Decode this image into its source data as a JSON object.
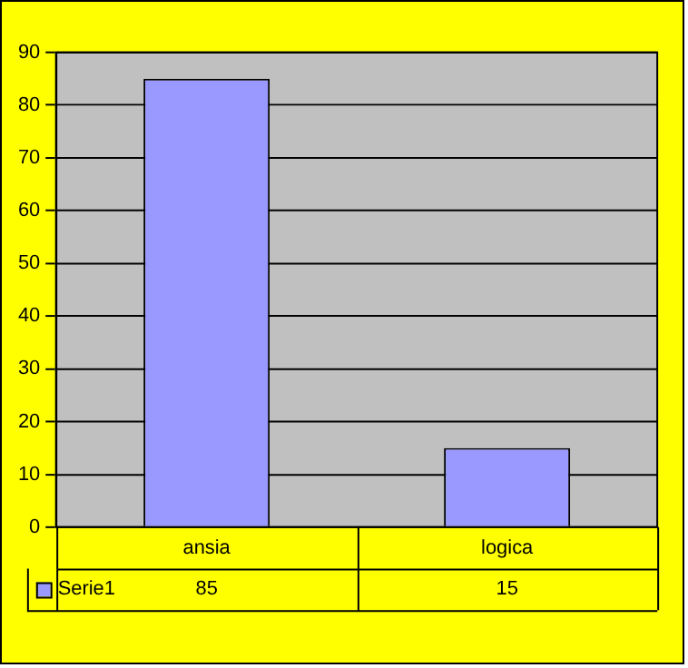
{
  "chart_data": {
    "type": "bar",
    "categories": [
      "ansia",
      "logica"
    ],
    "series": [
      {
        "name": "Serie1",
        "color": "#9999ff",
        "values": [
          85,
          15
        ]
      }
    ],
    "ylim": [
      0,
      90
    ],
    "yticks": [
      0,
      10,
      20,
      30,
      40,
      50,
      60,
      70,
      80,
      90
    ],
    "grid": "y",
    "legend": "bottom left",
    "data_labels": true
  }
}
